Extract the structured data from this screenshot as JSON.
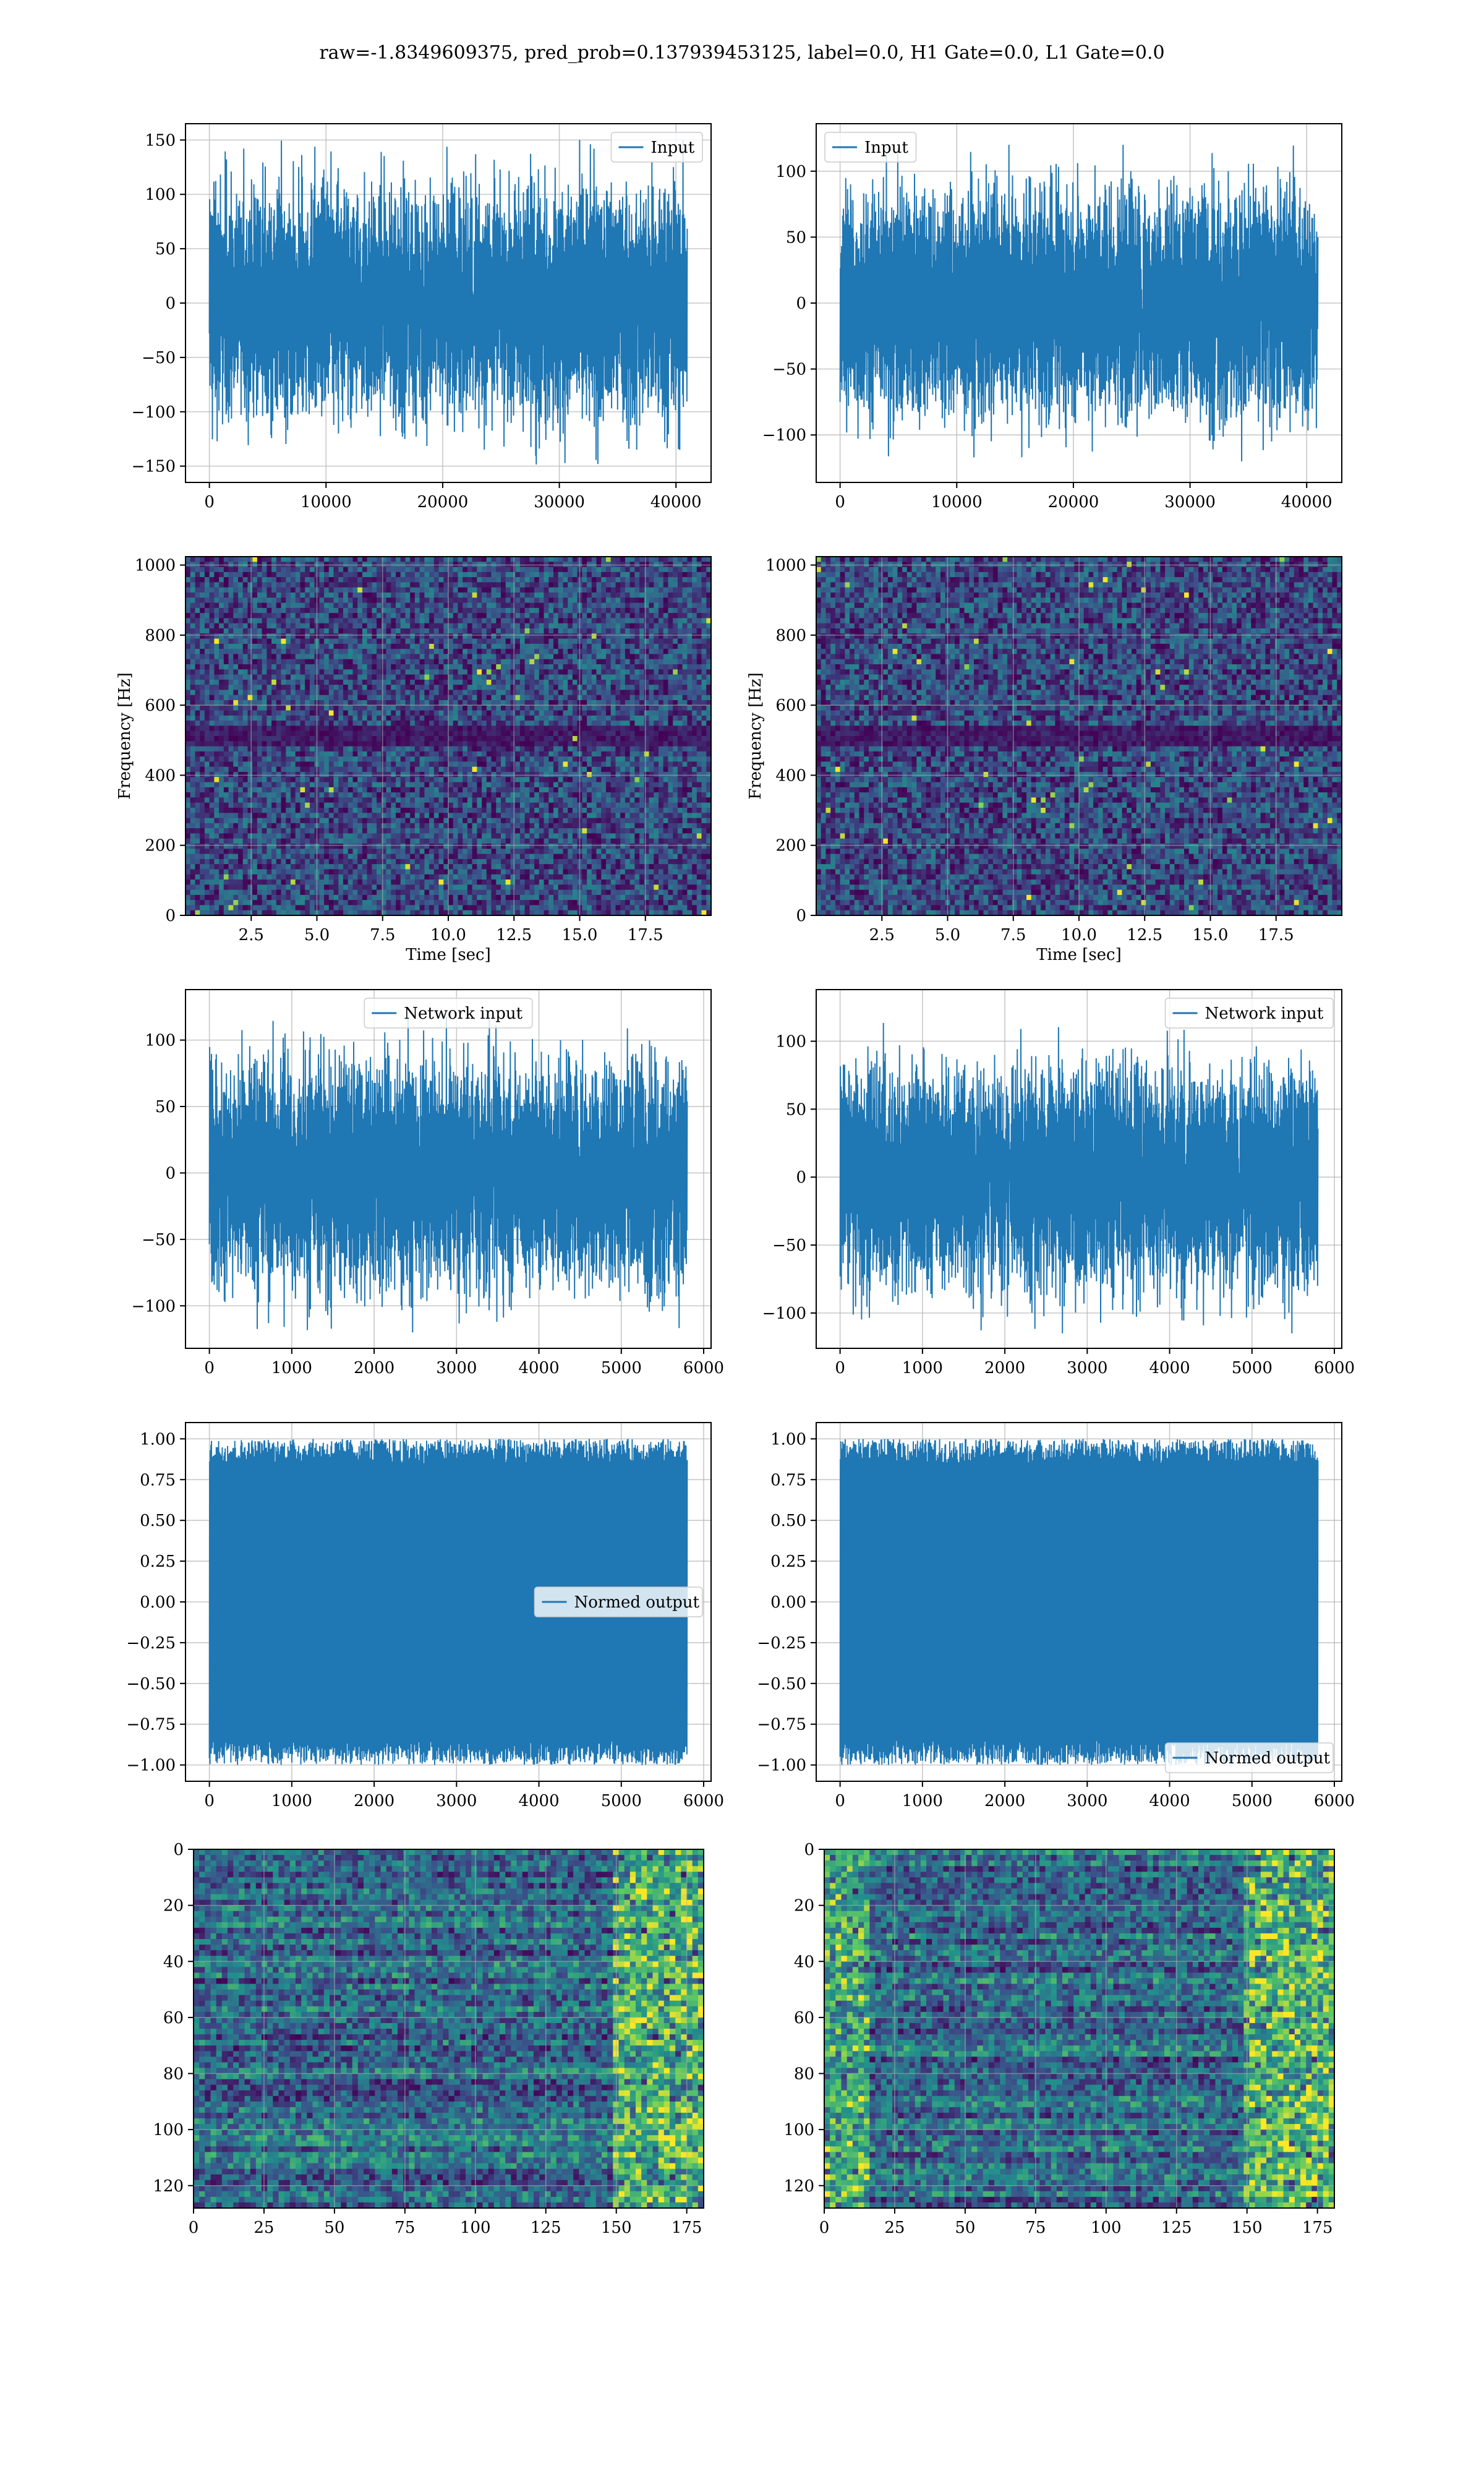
{
  "figure": {
    "suptitle": "raw=-1.8349609375, pred_prob=0.137939453125, label=0.0, H1 Gate=0.0, L1 Gate=0.0"
  },
  "colors": {
    "line": "#1f77b4",
    "grid": "#b0b0b0",
    "viridis_dark": "#440154",
    "viridis_mid": "#21918c",
    "viridis_bright": "#fde725"
  },
  "chart_data": [
    {
      "id": "h1-input",
      "type": "line",
      "title": "",
      "xlabel": "",
      "ylabel": "",
      "series": [
        {
          "name": "Input",
          "n": 40960,
          "amplitude": 150
        }
      ],
      "xlim": [
        -2048,
        43008
      ],
      "ylim": [
        -165,
        165
      ],
      "xticks": [
        0,
        10000,
        20000,
        30000,
        40000
      ],
      "yticks": [
        -150,
        -100,
        -50,
        0,
        50,
        100,
        150
      ],
      "xtick_labels": [
        "0",
        "10000",
        "20000",
        "30000",
        "40000"
      ],
      "ytick_labels": [
        "−150",
        "−100",
        "−50",
        "0",
        "50",
        "100",
        "150"
      ],
      "legend": "top-right",
      "grid": true
    },
    {
      "id": "l1-input",
      "type": "line",
      "title": "",
      "xlabel": "",
      "ylabel": "",
      "series": [
        {
          "name": "Input",
          "n": 40960,
          "amplitude": 120
        }
      ],
      "xlim": [
        -2048,
        43008
      ],
      "ylim": [
        -136,
        136
      ],
      "xticks": [
        0,
        10000,
        20000,
        30000,
        40000
      ],
      "yticks": [
        -100,
        -50,
        0,
        50,
        100
      ],
      "xtick_labels": [
        "0",
        "10000",
        "20000",
        "30000",
        "40000"
      ],
      "ytick_labels": [
        "−100",
        "−50",
        "0",
        "50",
        "100"
      ],
      "legend": "top-left",
      "grid": true
    },
    {
      "id": "h1-spectrogram",
      "type": "heatmap",
      "title": "",
      "xlabel": "Time [sec]",
      "ylabel": "Frequency [Hz]",
      "xlim": [
        0,
        20
      ],
      "ylim": [
        0,
        1024
      ],
      "xticks": [
        2.5,
        5.0,
        7.5,
        10.0,
        12.5,
        15.0,
        17.5
      ],
      "yticks": [
        0,
        200,
        400,
        600,
        800,
        1000
      ],
      "xtick_labels": [
        "2.5",
        "5.0",
        "7.5",
        "10.0",
        "12.5",
        "15.0",
        "17.5"
      ],
      "ytick_labels": [
        "0",
        "200",
        "400",
        "600",
        "800",
        "1000"
      ],
      "colormap": "viridis",
      "grid": true
    },
    {
      "id": "l1-spectrogram",
      "type": "heatmap",
      "title": "",
      "xlabel": "Time [sec]",
      "ylabel": "Frequency [Hz]",
      "xlim": [
        0,
        20
      ],
      "ylim": [
        0,
        1024
      ],
      "xticks": [
        2.5,
        5.0,
        7.5,
        10.0,
        12.5,
        15.0,
        17.5
      ],
      "yticks": [
        0,
        200,
        400,
        600,
        800,
        1000
      ],
      "xtick_labels": [
        "2.5",
        "5.0",
        "7.5",
        "10.0",
        "12.5",
        "15.0",
        "17.5"
      ],
      "ytick_labels": [
        "0",
        "200",
        "400",
        "600",
        "800",
        "1000"
      ],
      "colormap": "viridis",
      "grid": true
    },
    {
      "id": "h1-network-input",
      "type": "line",
      "title": "",
      "xlabel": "",
      "ylabel": "",
      "series": [
        {
          "name": "Network input",
          "n": 5800,
          "amplitude": 120
        }
      ],
      "xlim": [
        -290,
        6090
      ],
      "ylim": [
        -132,
        138
      ],
      "xticks": [
        0,
        1000,
        2000,
        3000,
        4000,
        5000,
        6000
      ],
      "yticks": [
        -100,
        -50,
        0,
        50,
        100
      ],
      "xtick_labels": [
        "0",
        "1000",
        "2000",
        "3000",
        "4000",
        "5000",
        "6000"
      ],
      "ytick_labels": [
        "−100",
        "−50",
        "0",
        "50",
        "100"
      ],
      "legend": "top-center",
      "grid": true
    },
    {
      "id": "l1-network-input",
      "type": "line",
      "title": "",
      "xlabel": "",
      "ylabel": "",
      "series": [
        {
          "name": "Network input",
          "n": 5800,
          "amplitude": 115
        }
      ],
      "xlim": [
        -290,
        6090
      ],
      "ylim": [
        -126,
        138
      ],
      "xticks": [
        0,
        1000,
        2000,
        3000,
        4000,
        5000,
        6000
      ],
      "yticks": [
        -100,
        -50,
        0,
        50,
        100
      ],
      "xtick_labels": [
        "0",
        "1000",
        "2000",
        "3000",
        "4000",
        "5000",
        "6000"
      ],
      "ytick_labels": [
        "−100",
        "−50",
        "0",
        "50",
        "100"
      ],
      "legend": "top-right",
      "grid": true
    },
    {
      "id": "h1-normed-output",
      "type": "line",
      "title": "",
      "xlabel": "",
      "ylabel": "",
      "series": [
        {
          "name": "Normed output",
          "n": 5800,
          "amplitude": 1.0
        }
      ],
      "xlim": [
        -290,
        6090
      ],
      "ylim": [
        -1.1,
        1.1
      ],
      "xticks": [
        0,
        1000,
        2000,
        3000,
        4000,
        5000,
        6000
      ],
      "yticks": [
        -1.0,
        -0.75,
        -0.5,
        -0.25,
        0.0,
        0.25,
        0.5,
        0.75,
        1.0
      ],
      "xtick_labels": [
        "0",
        "1000",
        "2000",
        "3000",
        "4000",
        "5000",
        "6000"
      ],
      "ytick_labels": [
        "−1.00",
        "−0.75",
        "−0.50",
        "−0.25",
        "0.00",
        "0.25",
        "0.50",
        "0.75",
        "1.00"
      ],
      "legend": "center-right",
      "grid": true
    },
    {
      "id": "l1-normed-output",
      "type": "line",
      "title": "",
      "xlabel": "",
      "ylabel": "",
      "series": [
        {
          "name": "Normed output",
          "n": 5800,
          "amplitude": 1.0
        }
      ],
      "xlim": [
        -290,
        6090
      ],
      "ylim": [
        -1.1,
        1.1
      ],
      "xticks": [
        0,
        1000,
        2000,
        3000,
        4000,
        5000,
        6000
      ],
      "yticks": [
        -1.0,
        -0.75,
        -0.5,
        -0.25,
        0.0,
        0.25,
        0.5,
        0.75,
        1.0
      ],
      "xtick_labels": [
        "0",
        "1000",
        "2000",
        "3000",
        "4000",
        "5000",
        "6000"
      ],
      "ytick_labels": [
        "−1.00",
        "−0.75",
        "−0.50",
        "−0.25",
        "0.00",
        "0.25",
        "0.50",
        "0.75",
        "1.00"
      ],
      "legend": "bottom-right",
      "grid": true
    },
    {
      "id": "h1-features",
      "type": "heatmap",
      "title": "",
      "xlabel": "",
      "ylabel": "",
      "xlim": [
        0,
        181
      ],
      "ylim": [
        128,
        0
      ],
      "xticks": [
        0,
        25,
        50,
        75,
        100,
        125,
        150,
        175
      ],
      "yticks": [
        0,
        20,
        40,
        60,
        80,
        100,
        120
      ],
      "xtick_labels": [
        "0",
        "25",
        "50",
        "75",
        "100",
        "125",
        "150",
        "175"
      ],
      "ytick_labels": [
        "0",
        "20",
        "40",
        "60",
        "80",
        "100",
        "120"
      ],
      "colormap": "viridis",
      "grid": true
    },
    {
      "id": "l1-features",
      "type": "heatmap",
      "title": "",
      "xlabel": "",
      "ylabel": "",
      "xlim": [
        0,
        181
      ],
      "ylim": [
        128,
        0
      ],
      "xticks": [
        0,
        25,
        50,
        75,
        100,
        125,
        150,
        175
      ],
      "yticks": [
        0,
        20,
        40,
        60,
        80,
        100,
        120
      ],
      "xtick_labels": [
        "0",
        "25",
        "50",
        "75",
        "100",
        "125",
        "150",
        "175"
      ],
      "ytick_labels": [
        "0",
        "20",
        "40",
        "60",
        "80",
        "100",
        "120"
      ],
      "colormap": "viridis",
      "grid": true
    }
  ]
}
